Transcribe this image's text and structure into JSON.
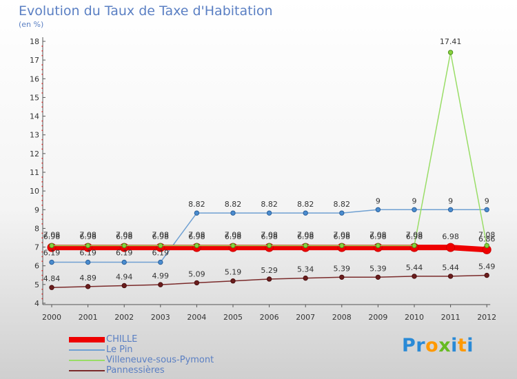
{
  "header": {
    "title": "Evolution du Taux de Taxe d'Habitation",
    "subtitle": "(en %)"
  },
  "chart_data": {
    "type": "line",
    "title": "Evolution du Taux de Taxe d'Habitation",
    "ylabel": "(en %)",
    "xlabel": "",
    "ylim": [
      4,
      18
    ],
    "yticks": [
      4,
      5,
      6,
      7,
      8,
      9,
      10,
      11,
      12,
      13,
      14,
      15,
      16,
      17,
      18
    ],
    "categories": [
      "2000",
      "2001",
      "2002",
      "2003",
      "2004",
      "2005",
      "2006",
      "2007",
      "2008",
      "2009",
      "2010",
      "2011",
      "2012"
    ],
    "grid": false,
    "legend_position": "bottom-left",
    "series": [
      {
        "name": "CHILLE",
        "color": "#ee0000",
        "values": [
          6.98,
          6.98,
          6.98,
          6.98,
          6.98,
          6.98,
          6.98,
          6.98,
          6.98,
          6.98,
          6.98,
          6.98,
          6.86
        ],
        "labels": [
          "6.98",
          "6.98",
          "6.98",
          "6.98",
          "6.98",
          "6.98",
          "6.98",
          "6.98",
          "6.98",
          "6.98",
          "6.98",
          "6.98",
          "6.86"
        ]
      },
      {
        "name": "Le Pin",
        "color": "#6fa0d2",
        "values": [
          6.19,
          6.19,
          6.19,
          6.19,
          8.82,
          8.82,
          8.82,
          8.82,
          8.82,
          9,
          9,
          9,
          9
        ],
        "labels": [
          "6.19",
          "6.19",
          "6.19",
          "6.19",
          "8.82",
          "8.82",
          "8.82",
          "8.82",
          "8.82",
          "9",
          "9",
          "9",
          "9"
        ]
      },
      {
        "name": "Villeneuve-sous-Pymont",
        "color": "#99dd66",
        "values": [
          7.08,
          7.08,
          7.08,
          7.08,
          7.08,
          7.08,
          7.08,
          7.08,
          7.08,
          7.08,
          7.08,
          17.41,
          7.08
        ],
        "labels": [
          "7.08",
          "7.08",
          "7.08",
          "7.08",
          "7.08",
          "7.08",
          "7.08",
          "7.08",
          "7.08",
          "7.08",
          "7.08",
          "17.41",
          "7.08"
        ]
      },
      {
        "name": "Pannessières",
        "color": "#7a2a2a",
        "values": [
          4.84,
          4.89,
          4.94,
          4.99,
          5.09,
          5.19,
          5.29,
          5.34,
          5.39,
          5.39,
          5.44,
          5.44,
          5.49
        ],
        "labels": [
          "4.84",
          "4.89",
          "4.94",
          "4.99",
          "5.09",
          "5.19",
          "5.29",
          "5.34",
          "5.39",
          "5.39",
          "5.44",
          "5.44",
          "5.49"
        ]
      }
    ]
  },
  "legend": {
    "items": [
      {
        "label": "CHILLE",
        "color": "#ee0000"
      },
      {
        "label": "Le Pin",
        "color": "#6fa0d2"
      },
      {
        "label": "Villeneuve-sous-Pymont",
        "color": "#99dd66"
      },
      {
        "label": "Pannessières",
        "color": "#7a2a2a"
      }
    ]
  },
  "branding": {
    "logo_text": "Proxiti",
    "logo_letters": [
      {
        "ch": "P",
        "color": "#2a8ad6"
      },
      {
        "ch": "r",
        "color": "#2a8ad6"
      },
      {
        "ch": "o",
        "color": "#ff9900"
      },
      {
        "ch": "x",
        "color": "#66bb22"
      },
      {
        "ch": "i",
        "color": "#2a8ad6"
      },
      {
        "ch": "t",
        "color": "#ff9900"
      },
      {
        "ch": "i",
        "color": "#2a8ad6"
      }
    ]
  }
}
